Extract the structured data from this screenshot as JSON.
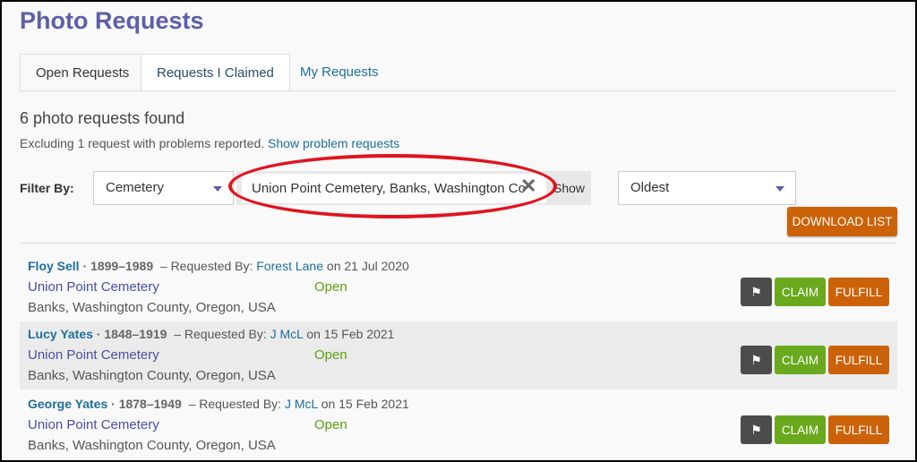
{
  "title": "Photo Requests",
  "tabs": [
    {
      "label": "Open Requests",
      "active": true
    },
    {
      "label": "Requests I Claimed"
    },
    {
      "label": "My Requests"
    }
  ],
  "summary": {
    "count": "6 photo requests found",
    "excluding": "Excluding 1 request with problems reported.",
    "show_problems": "Show problem requests"
  },
  "filter": {
    "label": "Filter By:",
    "type": "Cemetery",
    "search_value": "Union Point Cemetery, Banks, Washington Co",
    "show": "Show",
    "sort": "Oldest",
    "download": "DOWNLOAD LIST"
  },
  "requests": [
    {
      "name": "Floy Sell",
      "years": "1899–1989",
      "requested_by_label": "– Requested By:",
      "requester": "Forest Lane",
      "date": "on 21 Jul 2020",
      "cemetery": "Union Point Cemetery",
      "status": "Open",
      "location": "Banks, Washington County, Oregon, USA"
    },
    {
      "name": "Lucy Yates",
      "years": "1848–1919",
      "requested_by_label": "– Requested By:",
      "requester": "J McL",
      "date": "on 15 Feb 2021",
      "cemetery": "Union Point Cemetery",
      "status": "Open",
      "location": "Banks, Washington County, Oregon, USA"
    },
    {
      "name": "George Yates",
      "years": "1878–1949",
      "requested_by_label": "– Requested By:",
      "requester": "J McL",
      "date": "on 15 Feb 2021",
      "cemetery": "Union Point Cemetery",
      "status": "Open",
      "location": "Banks, Washington County, Oregon, USA"
    }
  ],
  "actions": {
    "claim": "CLAIM",
    "fulfill": "FULFILL",
    "flag_icon": "flag-icon"
  },
  "colors": {
    "title": "#5d5fa8",
    "link": "#1f6f9c",
    "claim": "#6aa81e",
    "fulfill": "#cc6208",
    "open": "#5aa00e",
    "annotation": "#e0141e"
  }
}
